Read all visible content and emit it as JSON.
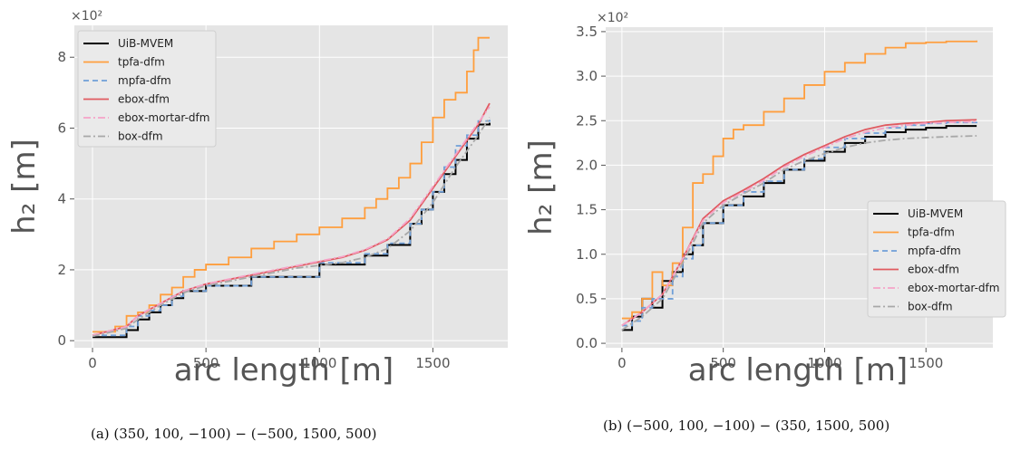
{
  "series_styles": [
    {
      "name": "UiB-MVEM",
      "color": "#000000",
      "dash": "none",
      "width": 2
    },
    {
      "name": "tpfa-dfm",
      "color": "#ff9e3d",
      "dash": "none",
      "width": 1.8
    },
    {
      "name": "mpfa-dfm",
      "color": "#6f9fd8",
      "dash": "6,4",
      "width": 1.8
    },
    {
      "name": "ebox-dfm",
      "color": "#e05a60",
      "dash": "none",
      "width": 1.8
    },
    {
      "name": "ebox-mortar-dfm",
      "color": "#f5a3c7",
      "dash": "8,3,2,3",
      "width": 1.8
    },
    {
      "name": "box-dfm",
      "color": "#a8a8a8",
      "dash": "8,3,2,3",
      "width": 1.8
    }
  ],
  "chart_data": [
    {
      "type": "line",
      "caption": "(a) (350, 100, −100) − (−500, 1500, 500)",
      "xlabel": "arc length [m]",
      "ylabel": "h₂ [m]",
      "scale_label": "×10²",
      "xlim": [
        -80,
        1830
      ],
      "ylim": [
        -0.2,
        8.9
      ],
      "xticks": [
        0,
        500,
        1000,
        1500
      ],
      "yticks": [
        0,
        2,
        4,
        6,
        8
      ],
      "grid": true,
      "legend": "top-left",
      "series": [
        {
          "name": "UiB-MVEM",
          "x": [
            0,
            150,
            200,
            250,
            300,
            350,
            400,
            500,
            700,
            1000,
            1200,
            1300,
            1400,
            1450,
            1500,
            1550,
            1600,
            1650,
            1700,
            1750
          ],
          "y": [
            0.1,
            0.3,
            0.6,
            0.8,
            1.0,
            1.2,
            1.4,
            1.55,
            1.8,
            2.15,
            2.4,
            2.7,
            3.3,
            3.7,
            4.2,
            4.7,
            5.1,
            5.7,
            6.1,
            6.15
          ],
          "step": true
        },
        {
          "name": "tpfa-dfm",
          "x": [
            0,
            100,
            150,
            200,
            250,
            300,
            350,
            400,
            450,
            500,
            600,
            700,
            800,
            900,
            1000,
            1100,
            1200,
            1250,
            1300,
            1350,
            1400,
            1450,
            1500,
            1550,
            1600,
            1650,
            1680,
            1700,
            1750
          ],
          "y": [
            0.25,
            0.4,
            0.7,
            0.8,
            1.0,
            1.3,
            1.5,
            1.8,
            2.0,
            2.15,
            2.35,
            2.6,
            2.8,
            3.0,
            3.2,
            3.45,
            3.75,
            4.0,
            4.3,
            4.6,
            5.0,
            5.6,
            6.3,
            6.8,
            7.0,
            7.6,
            8.2,
            8.55,
            8.55
          ],
          "step": true
        },
        {
          "name": "mpfa-dfm",
          "x": [
            0,
            150,
            200,
            250,
            300,
            350,
            400,
            500,
            700,
            1000,
            1200,
            1300,
            1400,
            1450,
            1500,
            1550,
            1600,
            1650,
            1700,
            1750
          ],
          "y": [
            0.15,
            0.4,
            0.7,
            0.85,
            1.0,
            1.25,
            1.4,
            1.55,
            1.8,
            2.2,
            2.45,
            2.75,
            3.3,
            3.7,
            4.2,
            4.9,
            5.5,
            5.8,
            6.2,
            6.25
          ],
          "step": true
        },
        {
          "name": "ebox-dfm",
          "x": [
            0,
            150,
            200,
            300,
            400,
            500,
            700,
            900,
            1100,
            1200,
            1300,
            1400,
            1500,
            1600,
            1700,
            1750
          ],
          "y": [
            0.15,
            0.4,
            0.7,
            1.05,
            1.4,
            1.6,
            1.85,
            2.1,
            2.35,
            2.55,
            2.85,
            3.4,
            4.3,
            5.2,
            6.1,
            6.7
          ],
          "step": false
        },
        {
          "name": "ebox-mortar-dfm",
          "x": [
            0,
            150,
            200,
            300,
            400,
            500,
            700,
            900,
            1100,
            1200,
            1300,
            1400,
            1500,
            1600,
            1700,
            1750
          ],
          "y": [
            0.15,
            0.4,
            0.7,
            1.05,
            1.4,
            1.6,
            1.87,
            2.12,
            2.37,
            2.57,
            2.87,
            3.45,
            4.35,
            5.25,
            6.15,
            6.6
          ],
          "step": false
        },
        {
          "name": "box-dfm",
          "x": [
            0,
            150,
            200,
            300,
            400,
            500,
            700,
            900,
            1100,
            1200,
            1300,
            1400,
            1500,
            1600,
            1700,
            1750
          ],
          "y": [
            0.12,
            0.35,
            0.6,
            1.0,
            1.35,
            1.55,
            1.8,
            2.05,
            2.2,
            2.35,
            2.6,
            3.1,
            3.9,
            4.9,
            5.8,
            6.3
          ],
          "step": false
        }
      ]
    },
    {
      "type": "line",
      "caption": "(b) (−500, 100, −100) − (350, 1500, 500)",
      "xlabel": "arc length [m]",
      "ylabel": "h₂ [m]",
      "scale_label": "×10²",
      "xlim": [
        -80,
        1830
      ],
      "ylim": [
        -0.05,
        3.55
      ],
      "xticks": [
        0,
        500,
        1000,
        1500
      ],
      "yticks": [
        0.0,
        0.5,
        1.0,
        1.5,
        2.0,
        2.5,
        3.0,
        3.5
      ],
      "grid": true,
      "legend": "bottom-right",
      "series": [
        {
          "name": "UiB-MVEM",
          "x": [
            0,
            50,
            100,
            150,
            200,
            250,
            300,
            350,
            400,
            500,
            600,
            700,
            800,
            900,
            1000,
            1100,
            1200,
            1300,
            1400,
            1500,
            1600,
            1750
          ],
          "y": [
            0.15,
            0.3,
            0.5,
            0.4,
            0.7,
            0.8,
            1.0,
            1.1,
            1.35,
            1.55,
            1.65,
            1.8,
            1.95,
            2.05,
            2.15,
            2.25,
            2.32,
            2.37,
            2.4,
            2.42,
            2.44,
            2.44
          ],
          "step": true
        },
        {
          "name": "tpfa-dfm",
          "x": [
            0,
            50,
            100,
            150,
            200,
            250,
            300,
            350,
            400,
            450,
            500,
            550,
            600,
            700,
            800,
            900,
            1000,
            1100,
            1200,
            1300,
            1400,
            1500,
            1600,
            1750
          ],
          "y": [
            0.28,
            0.35,
            0.5,
            0.8,
            0.65,
            0.9,
            1.3,
            1.8,
            1.9,
            2.1,
            2.3,
            2.4,
            2.45,
            2.6,
            2.75,
            2.9,
            3.05,
            3.15,
            3.25,
            3.32,
            3.37,
            3.38,
            3.39,
            3.4
          ],
          "step": true
        },
        {
          "name": "mpfa-dfm",
          "x": [
            0,
            50,
            100,
            150,
            200,
            250,
            300,
            350,
            400,
            500,
            600,
            700,
            800,
            900,
            1000,
            1100,
            1200,
            1300,
            1400,
            1500,
            1600,
            1750
          ],
          "y": [
            0.2,
            0.25,
            0.4,
            0.5,
            0.5,
            0.75,
            0.95,
            1.1,
            1.35,
            1.55,
            1.7,
            1.82,
            1.95,
            2.07,
            2.2,
            2.3,
            2.36,
            2.42,
            2.45,
            2.47,
            2.48,
            2.49
          ],
          "step": true
        },
        {
          "name": "ebox-dfm",
          "x": [
            0,
            100,
            200,
            300,
            400,
            500,
            600,
            700,
            800,
            900,
            1000,
            1100,
            1200,
            1300,
            1400,
            1500,
            1600,
            1750
          ],
          "y": [
            0.2,
            0.35,
            0.55,
            0.95,
            1.4,
            1.6,
            1.72,
            1.85,
            2.0,
            2.12,
            2.22,
            2.32,
            2.4,
            2.45,
            2.47,
            2.48,
            2.5,
            2.51
          ],
          "step": false
        },
        {
          "name": "ebox-mortar-dfm",
          "x": [
            0,
            100,
            200,
            300,
            400,
            500,
            600,
            700,
            800,
            900,
            1000,
            1100,
            1200,
            1300,
            1400,
            1500,
            1600,
            1750
          ],
          "y": [
            0.2,
            0.35,
            0.55,
            0.95,
            1.38,
            1.58,
            1.7,
            1.83,
            1.98,
            2.1,
            2.2,
            2.3,
            2.37,
            2.42,
            2.45,
            2.47,
            2.48,
            2.49
          ],
          "step": false
        },
        {
          "name": "box-dfm",
          "x": [
            0,
            100,
            200,
            300,
            400,
            500,
            600,
            700,
            800,
            900,
            1000,
            1100,
            1200,
            1300,
            1400,
            1500,
            1600,
            1750
          ],
          "y": [
            0.15,
            0.3,
            0.5,
            0.9,
            1.35,
            1.55,
            1.68,
            1.8,
            1.95,
            2.05,
            2.13,
            2.2,
            2.25,
            2.28,
            2.3,
            2.31,
            2.32,
            2.33
          ],
          "step": false
        }
      ]
    }
  ]
}
